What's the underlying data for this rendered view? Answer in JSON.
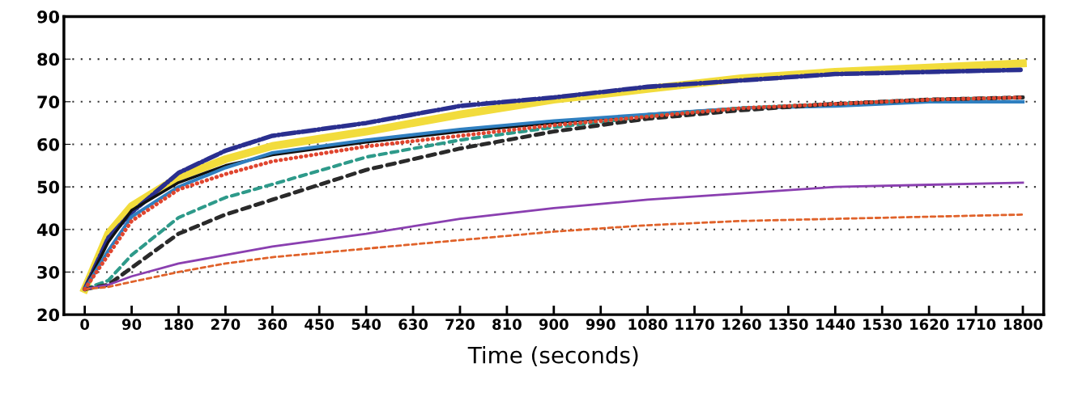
{
  "chart_data": {
    "type": "line",
    "xlabel": "Time (seconds)",
    "x": [
      0,
      45,
      90,
      180,
      270,
      360,
      540,
      720,
      900,
      1080,
      1260,
      1440,
      1620,
      1800
    ],
    "series": [
      {
        "color": "#f2dc3c",
        "line_style": "solid",
        "values": [
          26,
          39,
          45.5,
          52.3,
          56.5,
          59.6,
          63,
          67,
          70.5,
          73,
          75.5,
          77,
          78,
          79
        ]
      },
      {
        "color": "#2a2f8f",
        "line_style": "dashdot",
        "values": [
          26,
          38,
          44,
          53.3,
          58.5,
          62,
          65,
          69,
          71,
          73.5,
          75,
          76.5,
          77,
          77.5
        ]
      },
      {
        "color": "#111111",
        "line_style": "solid",
        "values": [
          26,
          37,
          44.5,
          51,
          55,
          57.5,
          60.5,
          63,
          65,
          67,
          68.5,
          69.5,
          70.5,
          71
        ]
      },
      {
        "color": "#2f7fc0",
        "line_style": "solid",
        "values": [
          26,
          35,
          43,
          50,
          54.5,
          58,
          61,
          63.5,
          65.5,
          67,
          68.5,
          69,
          70,
          70
        ]
      },
      {
        "color": "#e0452f",
        "line_style": "dotted",
        "values": [
          26,
          34,
          42,
          49.4,
          53,
          56,
          59.5,
          62,
          64.5,
          66.5,
          68.5,
          69.5,
          70.5,
          71
        ]
      },
      {
        "color": "#2e9a8a",
        "line_style": "dashed",
        "values": [
          26,
          28,
          34,
          42.8,
          47.5,
          50.6,
          57,
          61,
          64,
          66.5,
          68.5,
          69.5,
          70.5,
          71
        ]
      },
      {
        "color": "#2a2a2a",
        "line_style": "dashed",
        "values": [
          26,
          27,
          31,
          39,
          43.5,
          47,
          54,
          59,
          63,
          66,
          68,
          69.5,
          70.5,
          71
        ]
      },
      {
        "color": "#8a3fb0",
        "line_style": "solid",
        "values": [
          26,
          27,
          29,
          32,
          34,
          36,
          39,
          42.5,
          45,
          47,
          48.5,
          50,
          50.5,
          51
        ]
      },
      {
        "color": "#e0622a",
        "line_style": "dashed",
        "values": [
          26,
          26.5,
          27.7,
          30,
          32,
          33.5,
          35.5,
          37.5,
          39.5,
          41,
          42,
          42.5,
          43,
          43.5
        ]
      }
    ],
    "xlim": [
      -40,
      1840
    ],
    "ylim": [
      20,
      90
    ],
    "xticks": [
      0,
      90,
      180,
      270,
      360,
      450,
      540,
      630,
      720,
      810,
      900,
      990,
      1080,
      1170,
      1260,
      1350,
      1440,
      1530,
      1620,
      1710,
      1800
    ],
    "yticks": [
      20,
      30,
      40,
      50,
      60,
      70,
      80,
      90
    ],
    "grid": "y"
  }
}
